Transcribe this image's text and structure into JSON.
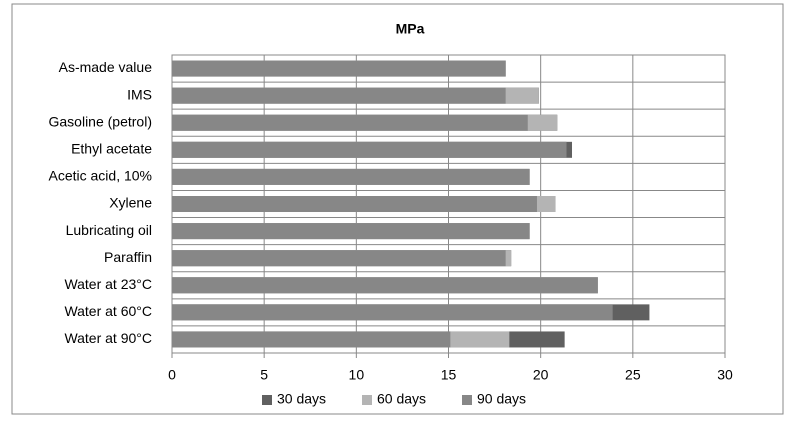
{
  "chart_data": {
    "type": "bar",
    "orientation": "horizontal",
    "overlap": true,
    "title": "MPa",
    "categories": [
      "As-made value",
      "IMS",
      "Gasoline (petrol)",
      "Ethyl acetate",
      "Acetic acid, 10%",
      "Xylene",
      "Lubricating oil",
      "Paraffin",
      "Water at 23°C",
      "Water at 60°C",
      "Water at 90°C"
    ],
    "series": [
      {
        "name": "30 days",
        "color": "#606060",
        "values": [
          18.1,
          19.9,
          20.9,
          21.7,
          19.4,
          20.8,
          19.4,
          18.4,
          23.1,
          25.9,
          21.3
        ]
      },
      {
        "name": "60 days",
        "color": "#b4b4b4",
        "values": [
          18.1,
          19.9,
          20.9,
          21.4,
          19.4,
          20.8,
          19.4,
          18.4,
          23.1,
          23.9,
          18.3
        ]
      },
      {
        "name": "90 days",
        "color": "#878787",
        "values": [
          18.1,
          18.1,
          19.3,
          21.4,
          19.4,
          19.8,
          19.4,
          18.1,
          23.1,
          23.9,
          15.1
        ]
      }
    ],
    "xlim": [
      0,
      30
    ],
    "xticks": [
      0,
      5,
      10,
      15,
      20,
      25,
      30
    ],
    "grid": true,
    "legend": "bottom"
  }
}
